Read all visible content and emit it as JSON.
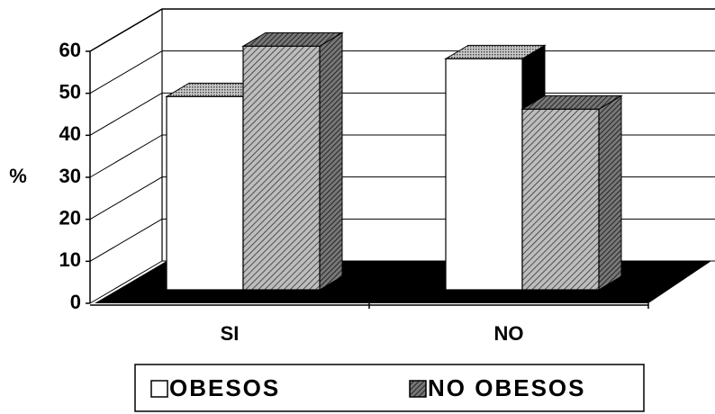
{
  "chart_data": {
    "type": "bar3d",
    "y_label": "%",
    "categories": [
      "SI",
      "NO"
    ],
    "series": [
      {
        "name": "OBESOS",
        "color": "#ffffff",
        "values": [
          46,
          55
        ]
      },
      {
        "name": "NO OBESOS",
        "color": "#8a8a8a",
        "values": [
          58,
          43
        ]
      }
    ],
    "ylim": [
      0,
      60
    ],
    "yticks": [
      0,
      10,
      20,
      30,
      40,
      50,
      60
    ],
    "grid": true,
    "legend": "bottom"
  }
}
